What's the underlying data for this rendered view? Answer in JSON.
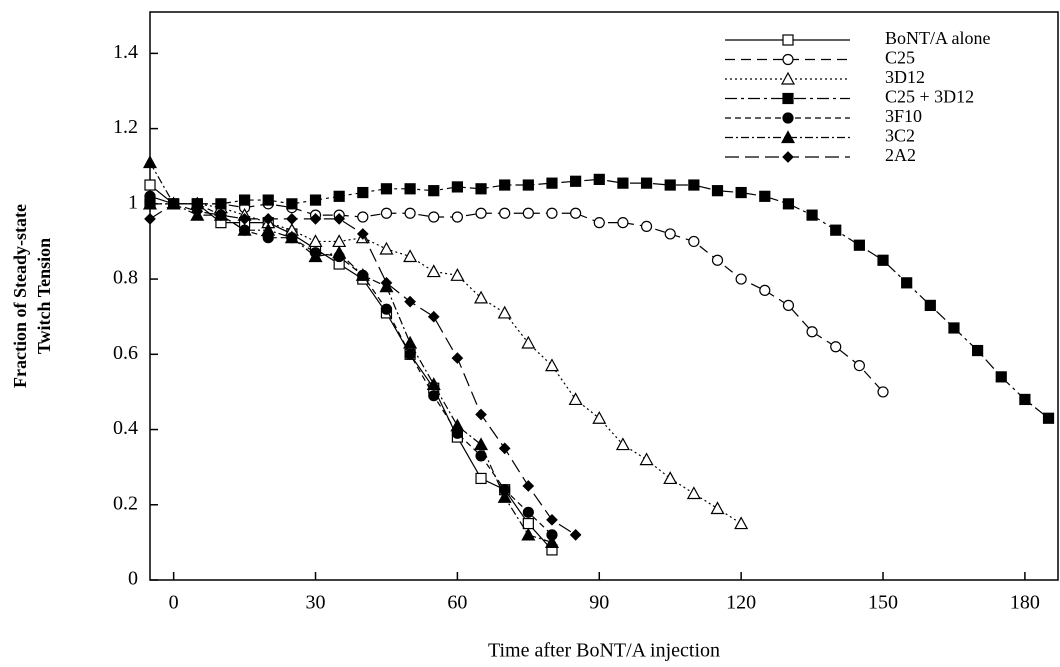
{
  "chart_data": {
    "type": "line",
    "xlabel": "Time after BoNT/A injection",
    "ylabel": [
      "Fraction of Steady-state",
      "Twitch Tension"
    ],
    "xlim": [
      -5,
      187
    ],
    "ylim": [
      0,
      1.51
    ],
    "xticks": [
      0,
      30,
      60,
      90,
      120,
      150,
      180
    ],
    "yticks": [
      0,
      0.2,
      0.4,
      0.6,
      0.8,
      1,
      1.2,
      1.4
    ],
    "legend": "upper right",
    "series": [
      {
        "name": "BoNT/A alone",
        "color": "#000000",
        "marker": "square-open",
        "dash": "solid",
        "x": [
          -5,
          0,
          5,
          10,
          15,
          20,
          25,
          30,
          35,
          40,
          45,
          50,
          55,
          60,
          65,
          70,
          75,
          80
        ],
        "values": [
          1.05,
          1.0,
          1.0,
          0.95,
          0.95,
          0.95,
          0.92,
          0.88,
          0.84,
          0.8,
          0.71,
          0.6,
          0.51,
          0.38,
          0.27,
          0.24,
          0.15,
          0.08
        ]
      },
      {
        "name": "C25",
        "color": "#000000",
        "marker": "circle-open",
        "dash": "dashed",
        "x": [
          -5,
          0,
          5,
          10,
          15,
          20,
          25,
          30,
          35,
          40,
          45,
          50,
          55,
          60,
          65,
          70,
          75,
          80,
          85,
          90,
          95,
          100,
          105,
          110,
          115,
          120,
          125,
          130,
          135,
          140,
          145,
          150
        ],
        "values": [
          1.02,
          1.0,
          1.0,
          1.0,
          0.99,
          1.0,
          0.99,
          0.97,
          0.97,
          0.965,
          0.975,
          0.975,
          0.965,
          0.965,
          0.975,
          0.975,
          0.975,
          0.975,
          0.975,
          0.95,
          0.95,
          0.94,
          0.92,
          0.9,
          0.85,
          0.8,
          0.77,
          0.73,
          0.66,
          0.62,
          0.57,
          0.5
        ]
      },
      {
        "name": "3D12",
        "color": "#000000",
        "marker": "triangle-open",
        "dash": "dotted",
        "x": [
          -5,
          0,
          5,
          10,
          15,
          20,
          25,
          30,
          35,
          40,
          45,
          50,
          55,
          60,
          65,
          70,
          75,
          80,
          85,
          90,
          95,
          100,
          105,
          110,
          115,
          120
        ],
        "values": [
          1.0,
          1.0,
          1.0,
          0.99,
          0.97,
          0.95,
          0.93,
          0.9,
          0.9,
          0.91,
          0.88,
          0.86,
          0.82,
          0.81,
          0.75,
          0.71,
          0.63,
          0.57,
          0.48,
          0.43,
          0.36,
          0.32,
          0.27,
          0.23,
          0.19,
          0.15
        ]
      },
      {
        "name": "C25 + 3D12",
        "color": "#000000",
        "marker": "square-filled",
        "dash": "dashdot",
        "x": [
          -5,
          0,
          5,
          10,
          15,
          20,
          25,
          30,
          35,
          40,
          45,
          50,
          55,
          60,
          65,
          70,
          75,
          80,
          85,
          90,
          95,
          100,
          105,
          110,
          115,
          120,
          125,
          130,
          135,
          140,
          145,
          150,
          155,
          160,
          165,
          170,
          175,
          180,
          185
        ],
        "values": [
          1.0,
          1.0,
          1.0,
          1.0,
          1.01,
          1.01,
          1.0,
          1.01,
          1.02,
          1.03,
          1.04,
          1.04,
          1.035,
          1.045,
          1.04,
          1.05,
          1.05,
          1.055,
          1.06,
          1.065,
          1.055,
          1.055,
          1.05,
          1.05,
          1.035,
          1.03,
          1.02,
          1.0,
          0.97,
          0.93,
          0.89,
          0.85,
          0.79,
          0.73,
          0.67,
          0.61,
          0.54,
          0.48,
          0.43
        ]
      },
      {
        "name": "3F10",
        "color": "#000000",
        "marker": "circle-filled",
        "dash": "shortdash",
        "x": [
          -5,
          0,
          5,
          10,
          15,
          20,
          25,
          30,
          35,
          40,
          45,
          50,
          55,
          60,
          65,
          70,
          75,
          80
        ],
        "values": [
          1.02,
          1.0,
          1.0,
          0.97,
          0.93,
          0.91,
          0.91,
          0.87,
          0.86,
          0.81,
          0.72,
          0.6,
          0.49,
          0.39,
          0.33,
          0.24,
          0.18,
          0.12
        ]
      },
      {
        "name": "3C2",
        "color": "#000000",
        "marker": "triangle-filled",
        "dash": "dashdotdot",
        "x": [
          -5,
          0,
          5,
          10,
          15,
          20,
          25,
          30,
          35,
          40,
          45,
          50,
          55,
          60,
          65,
          70,
          75,
          80
        ],
        "values": [
          1.11,
          1.0,
          0.97,
          0.97,
          0.93,
          0.93,
          0.91,
          0.86,
          0.87,
          0.81,
          0.78,
          0.63,
          0.52,
          0.41,
          0.36,
          0.22,
          0.12,
          0.1
        ]
      },
      {
        "name": "2A2",
        "color": "#000000",
        "marker": "diamond-filled",
        "dash": "longdash",
        "x": [
          -5,
          0,
          5,
          10,
          15,
          20,
          25,
          30,
          35,
          40,
          45,
          50,
          55,
          60,
          65,
          70,
          75,
          80,
          85
        ],
        "values": [
          0.96,
          1.0,
          0.98,
          0.97,
          0.96,
          0.96,
          0.96,
          0.96,
          0.96,
          0.92,
          0.79,
          0.74,
          0.7,
          0.59,
          0.44,
          0.35,
          0.25,
          0.16,
          0.12
        ]
      }
    ]
  }
}
